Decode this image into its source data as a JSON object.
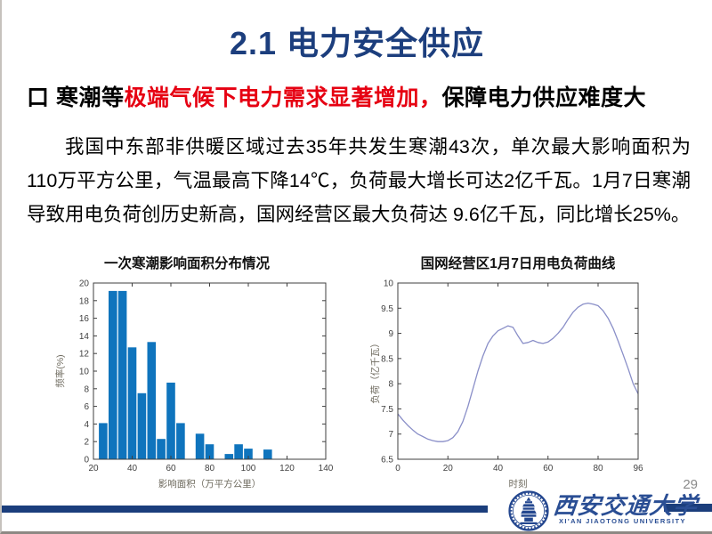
{
  "slide": {
    "title": "2.1 电力安全供应",
    "page_number": "29"
  },
  "heading": {
    "bullet": "口",
    "prefix": "寒潮等",
    "highlight": "极端气候下电力需求显著增加，",
    "suffix": "保障电力供应难度大"
  },
  "body": {
    "text": "我国中东部非供暖区域过去35年共发生寒潮43次，单次最大影响面积为110万平方公里，气温最高下降14℃，负荷最大增长可达2亿千瓦。1月7日寒潮导致用电负荷创历史新高，国网经营区最大负荷达 9.6亿千瓦，同比增长25%。"
  },
  "chart_data": [
    {
      "type": "bar",
      "title": "一次寒潮影响面积分布情况",
      "xlabel": "影响面积（万平方公里）",
      "ylabel": "频率(%)",
      "xlim": [
        20,
        140
      ],
      "ylim": [
        0,
        20
      ],
      "xticks": [
        20,
        40,
        60,
        80,
        100,
        120,
        140
      ],
      "yticks": [
        0,
        2,
        4,
        6,
        8,
        10,
        12,
        14,
        16,
        18,
        20
      ],
      "bin_width": 5,
      "bar_color": "#0f74bd",
      "grid": false,
      "x": [
        25,
        30,
        35,
        40,
        45,
        50,
        55,
        60,
        65,
        75,
        80,
        90,
        95,
        100,
        110
      ],
      "values": [
        4.1,
        19.1,
        19.1,
        12.7,
        7.5,
        13.3,
        2.3,
        8.7,
        4.1,
        2.9,
        1.7,
        0.6,
        1.7,
        1.2,
        1.1
      ]
    },
    {
      "type": "line",
      "title": "国网经营区1月7日用电负荷曲线",
      "xlabel": "时刻",
      "ylabel": "负荷（亿千瓦）",
      "xlim": [
        0,
        96
      ],
      "ylim": [
        6.5,
        10
      ],
      "xticks": [
        0,
        20,
        40,
        60,
        80,
        96
      ],
      "yticks": [
        6.5,
        7,
        7.5,
        8,
        8.5,
        9,
        9.5,
        10
      ],
      "line_color": "#8a8fc8",
      "grid": false,
      "x": [
        0,
        2,
        4,
        6,
        8,
        10,
        12,
        14,
        16,
        18,
        20,
        22,
        24,
        26,
        28,
        30,
        32,
        34,
        36,
        38,
        40,
        42,
        44,
        46,
        48,
        50,
        52,
        54,
        56,
        58,
        60,
        62,
        64,
        66,
        68,
        70,
        72,
        74,
        76,
        78,
        80,
        82,
        84,
        86,
        88,
        90,
        92,
        94,
        96
      ],
      "values": [
        7.4,
        7.28,
        7.17,
        7.08,
        7.0,
        6.95,
        6.9,
        6.87,
        6.85,
        6.85,
        6.87,
        6.93,
        7.05,
        7.25,
        7.55,
        7.9,
        8.25,
        8.55,
        8.8,
        8.95,
        9.05,
        9.1,
        9.15,
        9.12,
        8.95,
        8.8,
        8.82,
        8.86,
        8.82,
        8.8,
        8.83,
        8.9,
        9.0,
        9.12,
        9.28,
        9.42,
        9.52,
        9.58,
        9.6,
        9.58,
        9.55,
        9.45,
        9.3,
        9.1,
        8.85,
        8.58,
        8.3,
        8.0,
        7.8
      ]
    }
  ],
  "footer": {
    "university_cn": "西安交通大学",
    "university_en": "XI'AN JIAOTONG UNIVERSITY"
  },
  "colors": {
    "title_navy": "#1c3e7d",
    "highlight_red": "#e60012",
    "bar_blue": "#0f74bd",
    "line_purple": "#8a8fc8",
    "footer_blue": "#1b3e7c"
  }
}
